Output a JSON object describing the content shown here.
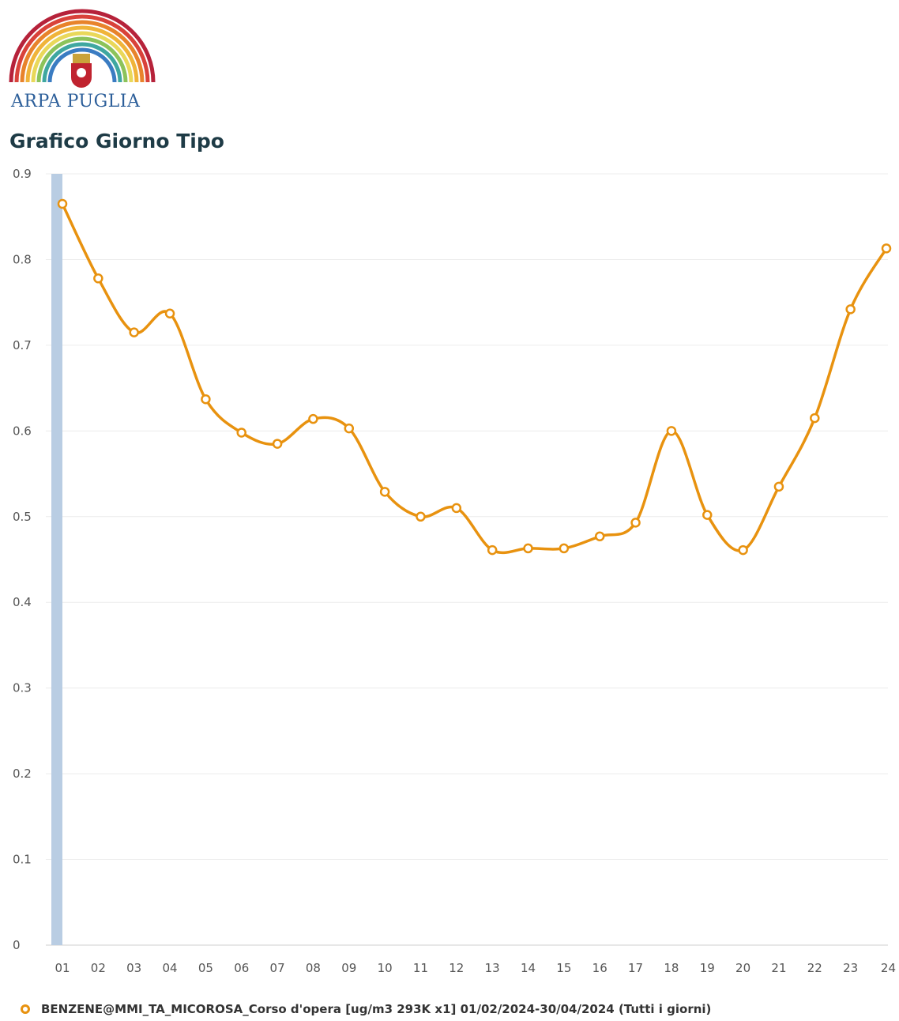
{
  "logo": {
    "text": "ARPA PUGLIA",
    "icon": "rainbow-arc-with-crest-logo"
  },
  "page": {
    "title": "Grafico Giorno Tipo"
  },
  "colors": {
    "series": "#e8920f",
    "highlight_band": "#b9cde3",
    "grid": "#ececec"
  },
  "chart_data": {
    "type": "line",
    "title": "",
    "xlabel": "",
    "ylabel": "",
    "ylim": [
      0,
      0.9
    ],
    "y_ticks": [
      "0",
      "0.1",
      "0.2",
      "0.3",
      "0.4",
      "0.5",
      "0.6",
      "0.7",
      "0.8",
      "0.9"
    ],
    "categories": [
      "01",
      "02",
      "03",
      "04",
      "05",
      "06",
      "07",
      "08",
      "09",
      "10",
      "11",
      "12",
      "13",
      "14",
      "15",
      "16",
      "17",
      "18",
      "19",
      "20",
      "21",
      "22",
      "23",
      "24"
    ],
    "series": [
      {
        "name": "BENZENE@MMI_TA_MICOROSA_Corso d'opera [ug/m3 293K x1] 01/02/2024-30/04/2024 (Tutti i giorni)",
        "values": [
          0.865,
          0.778,
          0.715,
          0.737,
          0.637,
          0.598,
          0.585,
          0.614,
          0.603,
          0.529,
          0.5,
          0.51,
          0.461,
          0.463,
          0.463,
          0.477,
          0.493,
          0.6,
          0.502,
          0.461,
          0.535,
          0.615,
          0.742,
          0.813
        ]
      }
    ],
    "highlighted_category": "01",
    "grid": true,
    "legend_position": "bottom-left"
  }
}
